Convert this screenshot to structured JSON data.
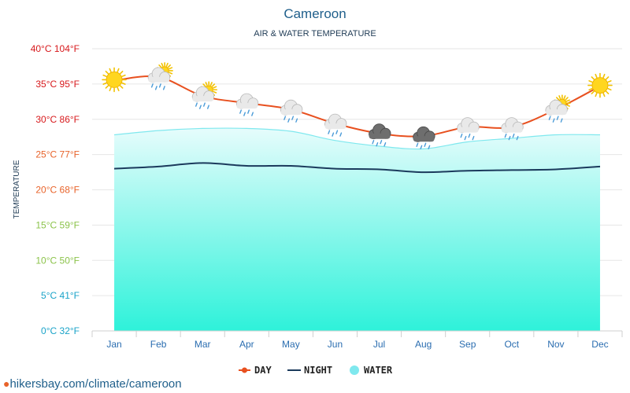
{
  "chart_data": {
    "type": "line",
    "title": "Cameroon",
    "subtitle": "AIR & WATER TEMPERATURE",
    "ylabel": "TEMPERATURE",
    "ylim": [
      0,
      40
    ],
    "categories": [
      "Jan",
      "Feb",
      "Mar",
      "Apr",
      "May",
      "Jun",
      "Jul",
      "Aug",
      "Sep",
      "Oct",
      "Nov",
      "Dec"
    ],
    "y_ticks": [
      {
        "value": 40,
        "label": "40°C 104°F",
        "color": "#d7191c"
      },
      {
        "value": 35,
        "label": "35°C 95°F",
        "color": "#d7191c"
      },
      {
        "value": 30,
        "label": "30°C 86°F",
        "color": "#d7191c"
      },
      {
        "value": 25,
        "label": "25°C 77°F",
        "color": "#e8632a"
      },
      {
        "value": 20,
        "label": "20°C 68°F",
        "color": "#e8632a"
      },
      {
        "value": 15,
        "label": "15°C 59°F",
        "color": "#8bc34a"
      },
      {
        "value": 10,
        "label": "10°C 50°F",
        "color": "#8bc34a"
      },
      {
        "value": 5,
        "label": "5°C 41°F",
        "color": "#1aa3c8"
      },
      {
        "value": 0,
        "label": "0°C 32°F",
        "color": "#1aa3c8"
      }
    ],
    "series": [
      {
        "name": "DAY",
        "color": "#e8501f",
        "values": [
          35.5,
          36.0,
          33.3,
          32.3,
          31.4,
          29.4,
          28.0,
          27.6,
          28.9,
          28.9,
          31.4,
          34.7
        ]
      },
      {
        "name": "NIGHT",
        "color": "#1b3a5c",
        "values": [
          23.0,
          23.3,
          23.8,
          23.4,
          23.4,
          23.0,
          22.9,
          22.5,
          22.7,
          22.8,
          22.9,
          23.3
        ]
      },
      {
        "name": "WATER",
        "color": "#7fe8ee",
        "values": [
          27.8,
          28.4,
          28.7,
          28.7,
          28.3,
          27.0,
          26.2,
          25.8,
          26.8,
          27.3,
          27.8,
          27.8
        ]
      }
    ],
    "weather_icons": [
      "sun",
      "sun-cloud-rain",
      "sun-cloud-rain",
      "cloud-rain",
      "cloud-rain",
      "cloud-rain",
      "storm-cloud-rain",
      "storm-cloud-rain",
      "cloud-rain",
      "cloud-rain",
      "sun-cloud-rain",
      "sun"
    ],
    "legend_position": "bottom-center",
    "grid": true
  },
  "footer": {
    "source_text": "hikersbay.com/climate/cameroon"
  }
}
